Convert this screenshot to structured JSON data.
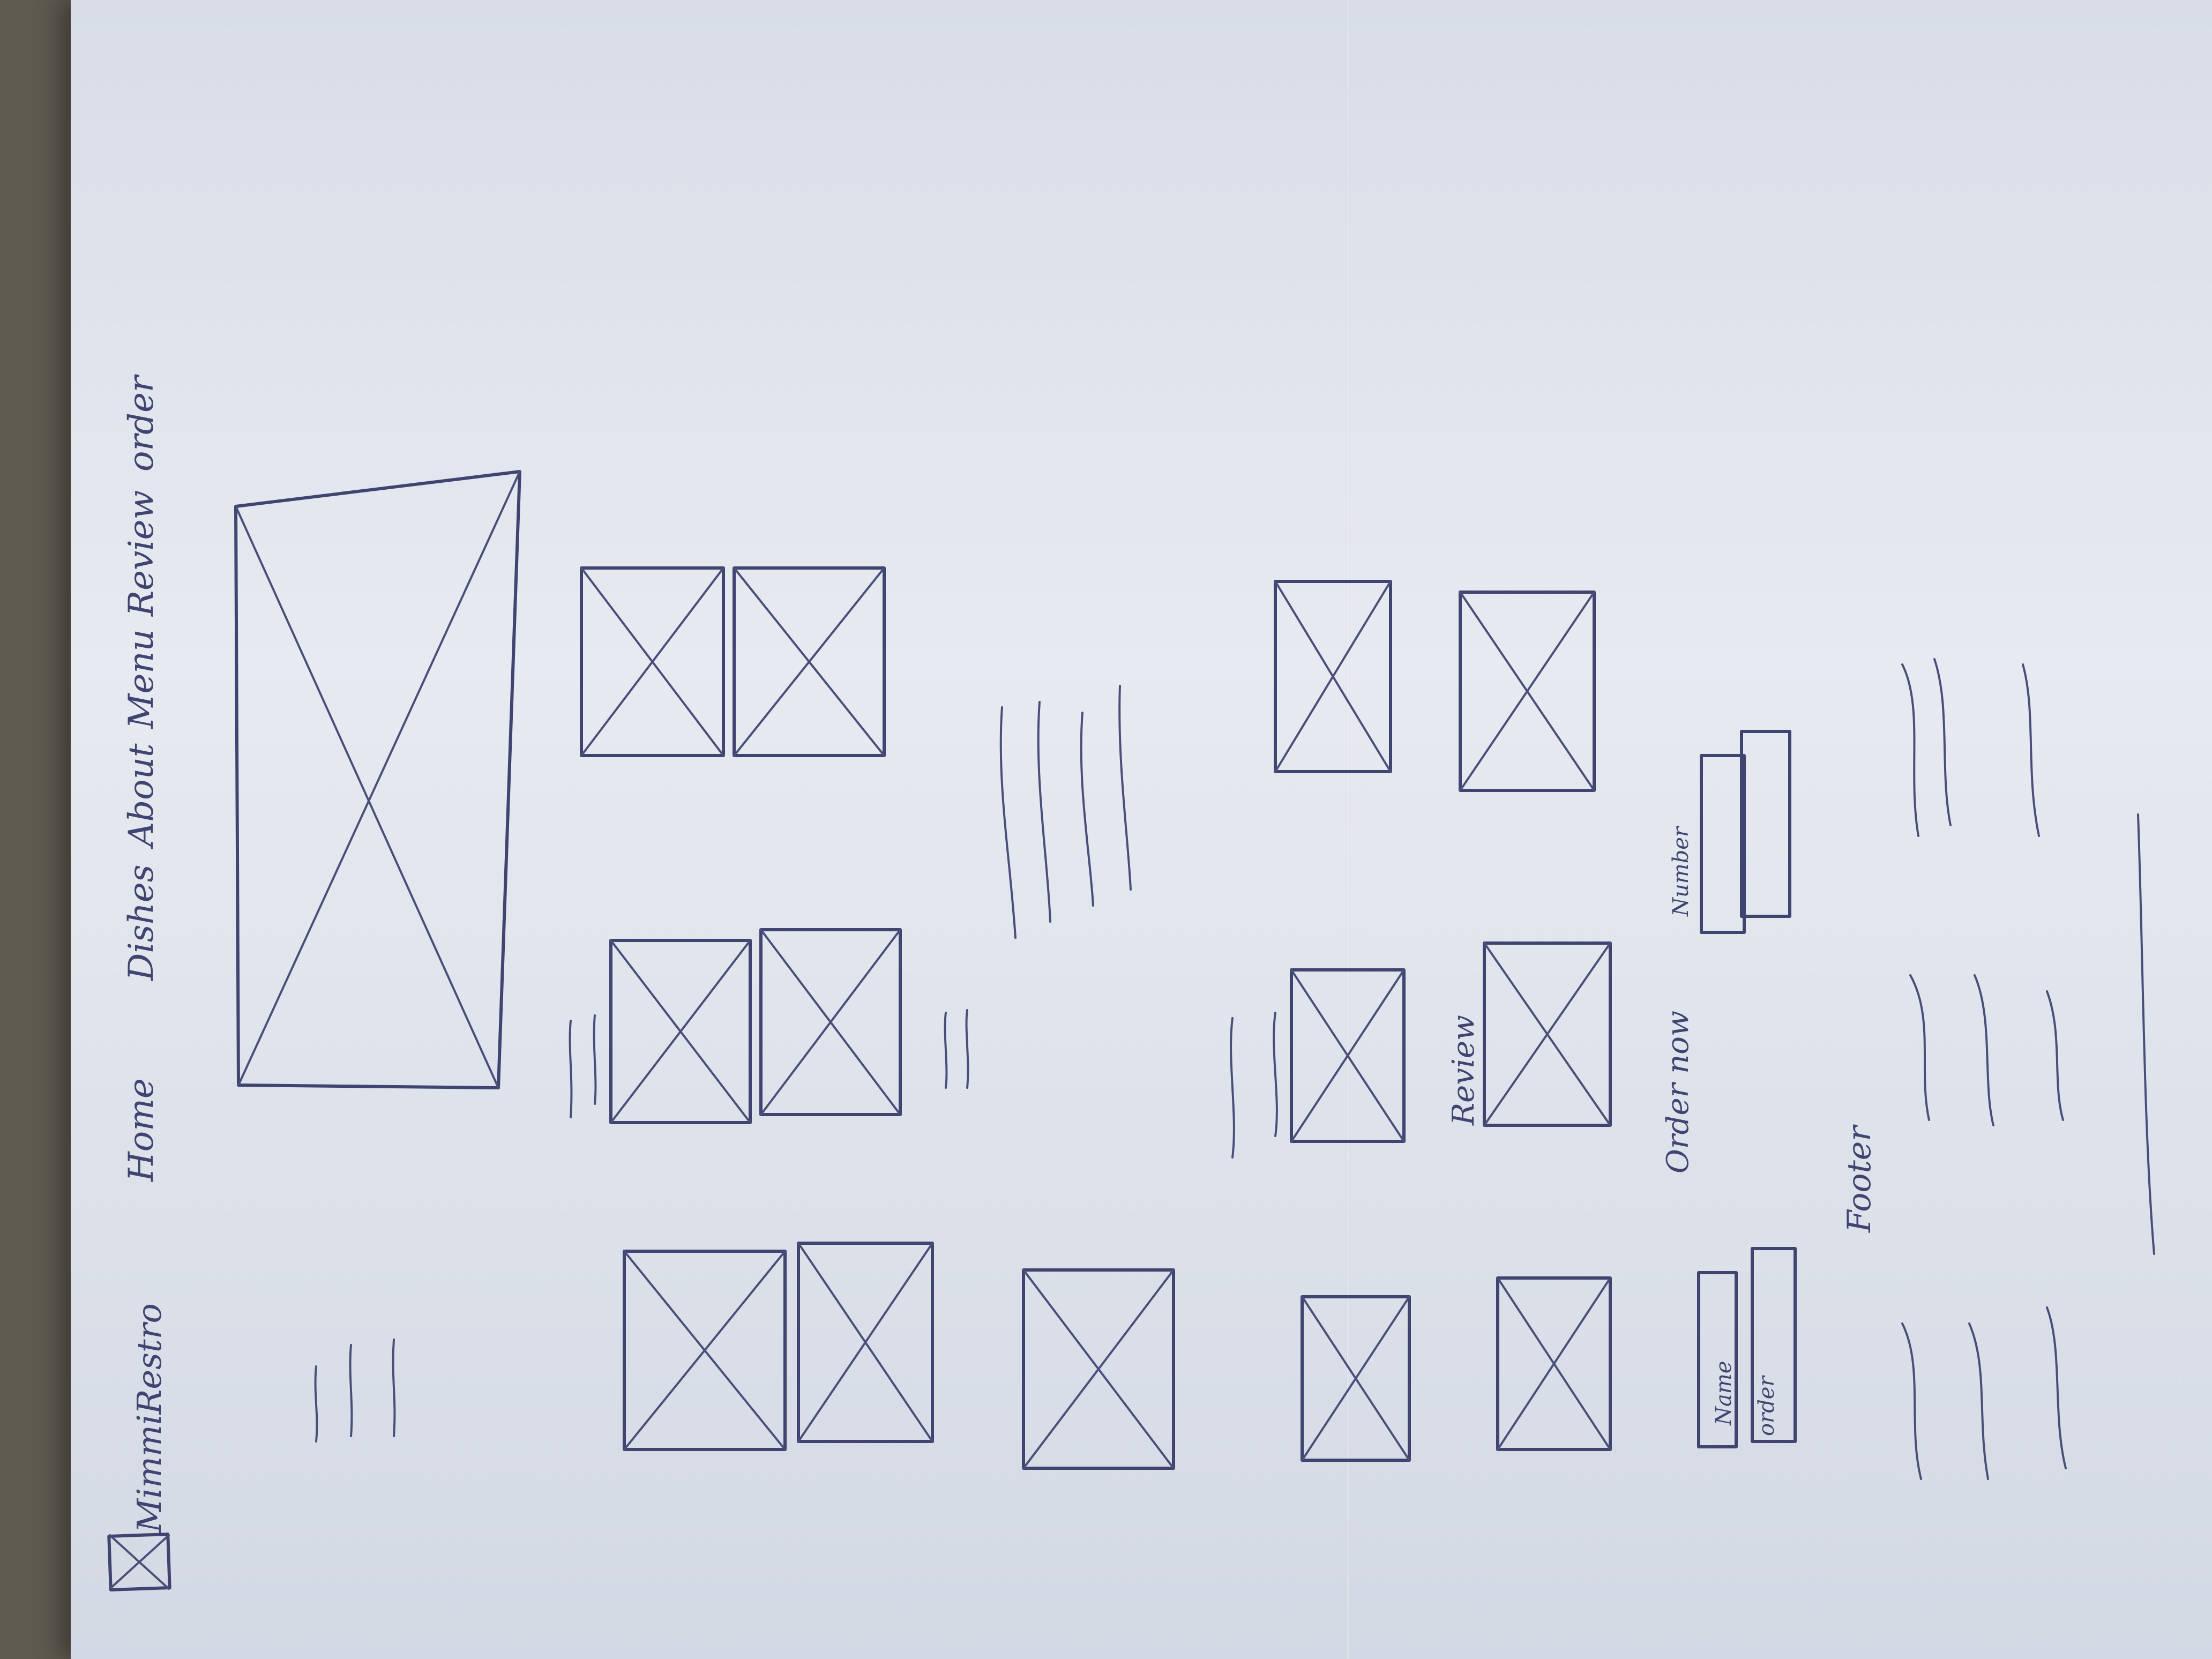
{
  "brand": {
    "name": "MimmiRestro",
    "logo_icon": "image-placeholder-icon"
  },
  "nav": {
    "items": [
      {
        "label": "Home"
      },
      {
        "label": "Dishes"
      },
      {
        "label": "About"
      },
      {
        "label": "Menu"
      },
      {
        "label": "Review"
      },
      {
        "label": "order"
      }
    ]
  },
  "sections": {
    "review_label": "Review",
    "order_label": "Order now",
    "footer_label": "Footer"
  },
  "form": {
    "name_placeholder": "Name",
    "order_placeholder": "order",
    "number_placeholder": "Number"
  },
  "colors": {
    "ink": "#3f4470",
    "paper": "#e2e6ee",
    "background": "#5f5a50"
  }
}
